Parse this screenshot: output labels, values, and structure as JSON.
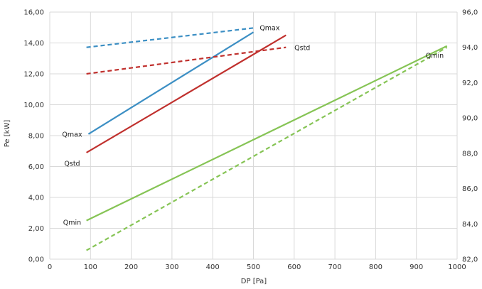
{
  "chart_data": {
    "type": "line",
    "title": "",
    "xlabel": "DP [Pa]",
    "ylabel": "Pe [kW]",
    "xlim": [
      0,
      1000
    ],
    "ylim": [
      0,
      16
    ],
    "y2lim": [
      82,
      96
    ],
    "grid": true,
    "legend": "none",
    "x_ticks": [
      "0",
      "100",
      "200",
      "300",
      "400",
      "500",
      "600",
      "700",
      "800",
      "900",
      "1000"
    ],
    "y_ticks": [
      "0,00",
      "2,00",
      "4,00",
      "6,00",
      "8,00",
      "10,00",
      "12,00",
      "14,00",
      "16,00"
    ],
    "y2_ticks": [
      "82,0",
      "84,0",
      "86,0",
      "88,0",
      "90,0",
      "92,0",
      "94,0",
      "96,0"
    ],
    "series": [
      {
        "color": "#3c8fc4",
        "dash": false,
        "axis": "left",
        "x": [
          95,
          500
        ],
        "y": [
          8.1,
          14.7
        ]
      },
      {
        "color": "#c0302d",
        "dash": false,
        "axis": "left",
        "x": [
          90,
          580
        ],
        "y": [
          6.9,
          14.5
        ]
      },
      {
        "color": "#86c455",
        "dash": false,
        "axis": "left",
        "x": [
          90,
          975
        ],
        "y": [
          2.5,
          13.8
        ]
      },
      {
        "color": "#3c8fc4",
        "dash": true,
        "axis": "right",
        "x": [
          90,
          500
        ],
        "y": [
          94.0,
          95.1
        ]
      },
      {
        "color": "#c0302d",
        "dash": true,
        "axis": "right",
        "x": [
          90,
          580
        ],
        "y": [
          92.5,
          94.0
        ]
      },
      {
        "color": "#86c455",
        "dash": true,
        "axis": "right",
        "x": [
          90,
          975
        ],
        "y": [
          82.5,
          94.0
        ]
      }
    ],
    "annotations": [
      {
        "text": "Qmax",
        "x": 55,
        "y": 8.1
      },
      {
        "text": "Qstd",
        "x": 55,
        "y": 6.2
      },
      {
        "text": "Qmin",
        "x": 55,
        "y": 2.4
      },
      {
        "text": "Qmax",
        "x": 540,
        "y": 15.0
      },
      {
        "text": "Qstd",
        "x": 620,
        "y": 13.7
      },
      {
        "text": "Qmin",
        "x": 945,
        "y": 13.2
      }
    ]
  }
}
